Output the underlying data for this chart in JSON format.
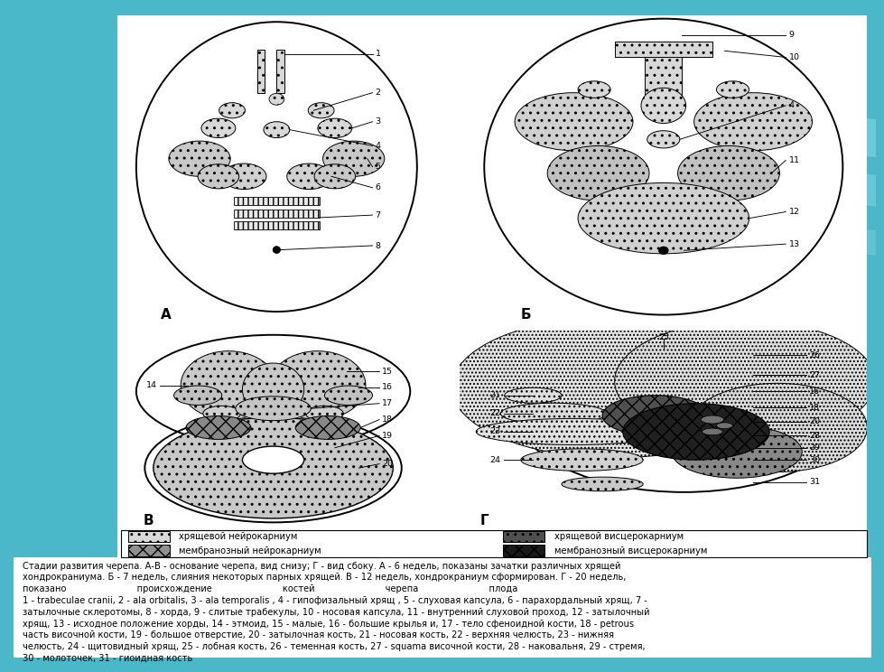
{
  "bg_color": "#4ab8c8",
  "panel_bg": "#ffffff",
  "caption_lines": [
    "Стадии развития черепа. А-В - основание черепа, вид снизу; Г - вид сбоку. А - 6 недель, показаны зачатки различных хрящей хондрокраниума. Б - 7 недель, слияния некоторых парных хрящей. В - 12 недель, хондрокраниум сформирован. Г - 20 недель,",
    "показано                         происхождение                         костей                         черепа                         плода",
    "1 - trabeculae cranii, 2 - ala orbitalis, 3 - ala temporalis , 4 - гипофизальный хрящ , 5 - слуховая капсула, 6 - парахордальный хрящ, 7 - затылочные склеротомы, 8 - хорда, 9 - слитые трабекулы, 10 - носовая капсула, 11 - внутренний слуховой проход, 12 - затылочный",
    "хрящ, 13 - исходное положение хорды, 14 - этмоид, 15 - малые, 16 - большие крылья и, 17 - тело сфеноидной кости, 18 - petrous часть височной кости, 19 - большое отверстие, 20 - затылочная кость, 21 - носовая кость, 22 - верхняя челюсть, 23 - нижняя",
    "челюсть, 24 - щитовидный хрящ, 25 - лобная кость, 26 - теменная кость, 27 - squama височной кости, 28 - наковальня, 29 - стремя, 30 - молоточек, 31 - гиоидная кость"
  ],
  "light_cart_fc": "#d8d8d8",
  "light_cart_ec": "#444444",
  "med_cart_fc": "#b8b8b8",
  "dark_cart_fc": "#505050",
  "very_dark_fc": "#1a1a1a",
  "membr_fc": "#909090"
}
